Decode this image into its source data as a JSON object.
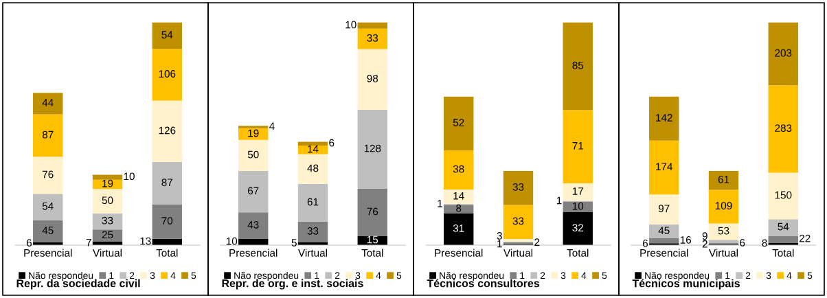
{
  "chart_data": [
    {
      "type": "bar",
      "stacked": true,
      "data_labels": true,
      "legend": "bottom",
      "title": "Repr. da sociedade civil",
      "categories": [
        "Presencial",
        "Virtual",
        "Total"
      ],
      "series": [
        {
          "name": "Não respondeu",
          "color": "#000000",
          "values": [
            6,
            7,
            13
          ]
        },
        {
          "name": "1",
          "color": "#808080",
          "values": [
            45,
            25,
            70
          ]
        },
        {
          "name": "2",
          "color": "#bfbfbf",
          "values": [
            54,
            33,
            87
          ]
        },
        {
          "name": "3",
          "color": "#fff2cc",
          "values": [
            76,
            50,
            126
          ]
        },
        {
          "name": "4",
          "color": "#ffc000",
          "values": [
            87,
            19,
            106
          ]
        },
        {
          "name": "5",
          "color": "#bf9000",
          "values": [
            44,
            10,
            54
          ]
        }
      ]
    },
    {
      "type": "bar",
      "stacked": true,
      "data_labels": true,
      "legend": "bottom",
      "title": "Repr. de org. e inst. sociais",
      "categories": [
        "Presencial",
        "Virtual",
        "Total"
      ],
      "series": [
        {
          "name": "Não respondeu",
          "color": "#000000",
          "values": [
            10,
            5,
            15
          ]
        },
        {
          "name": "1",
          "color": "#808080",
          "values": [
            43,
            33,
            76
          ]
        },
        {
          "name": "2",
          "color": "#bfbfbf",
          "values": [
            67,
            61,
            128
          ]
        },
        {
          "name": "3",
          "color": "#fff2cc",
          "values": [
            50,
            48,
            98
          ]
        },
        {
          "name": "4",
          "color": "#ffc000",
          "values": [
            19,
            14,
            33
          ]
        },
        {
          "name": "5",
          "color": "#bf9000",
          "values": [
            4,
            6,
            10
          ]
        }
      ]
    },
    {
      "type": "bar",
      "stacked": true,
      "data_labels": true,
      "legend": "bottom",
      "title": "Técnicos consultores",
      "categories": [
        "Presencial",
        "Virtual",
        "Total"
      ],
      "series": [
        {
          "name": "Não respondeu",
          "color": "#000000",
          "values": [
            31,
            1,
            32
          ]
        },
        {
          "name": "1",
          "color": "#808080",
          "values": [
            8,
            2,
            10
          ]
        },
        {
          "name": "2",
          "color": "#bfbfbf",
          "values": [
            1,
            0,
            1
          ],
          "value_labels": [
            "1",
            null,
            "1"
          ]
        },
        {
          "name": "3",
          "color": "#fff2cc",
          "values": [
            14,
            3,
            17
          ]
        },
        {
          "name": "4",
          "color": "#ffc000",
          "values": [
            38,
            33,
            71
          ]
        },
        {
          "name": "5",
          "color": "#bf9000",
          "values": [
            52,
            33,
            85
          ]
        }
      ]
    },
    {
      "type": "bar",
      "stacked": true,
      "data_labels": true,
      "legend": "bottom",
      "title": "Técnicos municipais",
      "categories": [
        "Presencial",
        "Virtual",
        "Total"
      ],
      "series": [
        {
          "name": "Não respondeu",
          "color": "#000000",
          "values": [
            6,
            2,
            8
          ]
        },
        {
          "name": "1",
          "color": "#808080",
          "values": [
            16,
            6,
            22
          ]
        },
        {
          "name": "2",
          "color": "#bfbfbf",
          "values": [
            45,
            9,
            54
          ]
        },
        {
          "name": "3",
          "color": "#fff2cc",
          "values": [
            97,
            53,
            150
          ]
        },
        {
          "name": "4",
          "color": "#ffc000",
          "values": [
            174,
            109,
            283
          ]
        },
        {
          "name": "5",
          "color": "#bf9000",
          "values": [
            142,
            61,
            203
          ]
        }
      ]
    }
  ]
}
